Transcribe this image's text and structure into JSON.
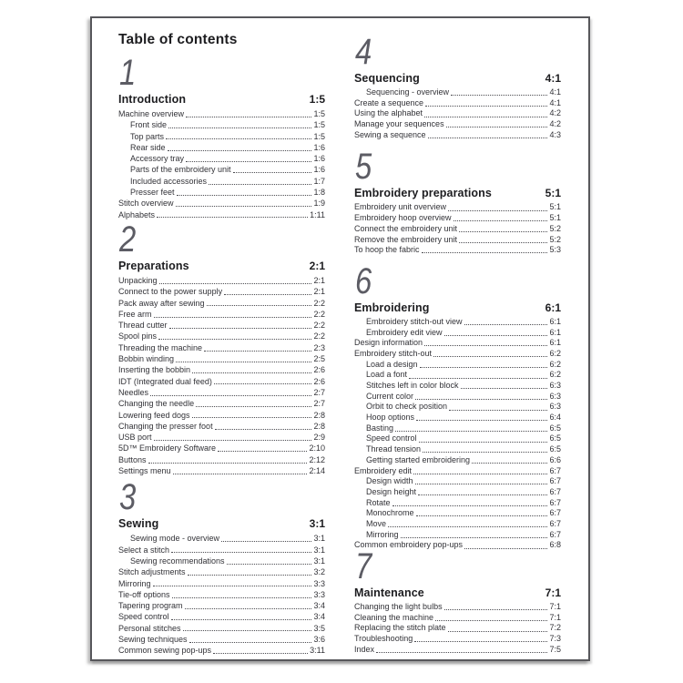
{
  "page": {
    "title": "Table of contents",
    "colors": {
      "text": "#323237",
      "heading": "#1d1d20",
      "numeral": "#5c5c64",
      "border": "#57575b"
    },
    "columns": [
      {
        "sections": [
          {
            "number": "1",
            "heading": "Introduction",
            "page": "1:5",
            "entries": [
              {
                "label": "Machine overview",
                "page": "1:5",
                "indent": 0
              },
              {
                "label": "Front side",
                "page": "1:5",
                "indent": 1
              },
              {
                "label": "Top parts",
                "page": "1:5",
                "indent": 1
              },
              {
                "label": "Rear side",
                "page": "1:6",
                "indent": 1
              },
              {
                "label": "Accessory tray",
                "page": "1:6",
                "indent": 1
              },
              {
                "label": "Parts of the embroidery unit",
                "page": "1:6",
                "indent": 1
              },
              {
                "label": "Included accessories",
                "page": "1:7",
                "indent": 1
              },
              {
                "label": "Presser feet",
                "page": "1:8",
                "indent": 1
              },
              {
                "label": "Stitch overview",
                "page": "1:9",
                "indent": 0
              },
              {
                "label": "Alphabets",
                "page": "1:11",
                "indent": 0
              }
            ]
          },
          {
            "number": "2",
            "heading": "Preparations",
            "page": "2:1",
            "entries": [
              {
                "label": "Unpacking",
                "page": "2:1",
                "indent": 0
              },
              {
                "label": "Connect to the power supply",
                "page": "2:1",
                "indent": 0
              },
              {
                "label": "Pack away after sewing",
                "page": "2:2",
                "indent": 0
              },
              {
                "label": "Free arm",
                "page": "2:2",
                "indent": 0
              },
              {
                "label": "Thread cutter",
                "page": "2:2",
                "indent": 0
              },
              {
                "label": "Spool pins",
                "page": "2:2",
                "indent": 0
              },
              {
                "label": "Threading the machine",
                "page": "2:3",
                "indent": 0
              },
              {
                "label": "Bobbin winding",
                "page": "2:5",
                "indent": 0
              },
              {
                "label": "Inserting the bobbin",
                "page": "2:6",
                "indent": 0
              },
              {
                "label": "IDT (Integrated dual feed)",
                "page": "2:6",
                "indent": 0
              },
              {
                "label": "Needles",
                "page": "2:7",
                "indent": 0
              },
              {
                "label": "Changing the needle",
                "page": "2:7",
                "indent": 0
              },
              {
                "label": "Lowering feed dogs",
                "page": "2:8",
                "indent": 0
              },
              {
                "label": "Changing the presser foot",
                "page": "2:8",
                "indent": 0
              },
              {
                "label": "USB port",
                "page": "2:9",
                "indent": 0
              },
              {
                "label": "5D™ Embroidery Software",
                "page": "2:10",
                "indent": 0
              },
              {
                "label": "Buttons",
                "page": "2:12",
                "indent": 0
              },
              {
                "label": "Settings menu",
                "page": "2:14",
                "indent": 0
              }
            ]
          },
          {
            "number": "3",
            "heading": "Sewing",
            "page": "3:1",
            "entries": [
              {
                "label": "Sewing mode - overview",
                "page": "3:1",
                "indent": 1
              },
              {
                "label": "Select a stitch",
                "page": "3:1",
                "indent": 0
              },
              {
                "label": "Sewing recommendations",
                "page": "3:1",
                "indent": 1
              },
              {
                "label": "Stitch adjustments",
                "page": "3:2",
                "indent": 0
              },
              {
                "label": "Mirroring",
                "page": "3:3",
                "indent": 0
              },
              {
                "label": "Tie-off options",
                "page": "3:3",
                "indent": 0
              },
              {
                "label": "Tapering program",
                "page": "3:4",
                "indent": 0
              },
              {
                "label": "Speed control",
                "page": "3:4",
                "indent": 0
              },
              {
                "label": "Personal stitches",
                "page": "3:5",
                "indent": 0
              },
              {
                "label": "Sewing techniques",
                "page": "3:6",
                "indent": 0
              },
              {
                "label": "Common sewing pop-ups",
                "page": "3:11",
                "indent": 0
              }
            ]
          }
        ]
      },
      {
        "sections": [
          {
            "number": "4",
            "heading": "Sequencing",
            "page": "4:1",
            "entries": [
              {
                "label": "Sequencing - overview",
                "page": "4:1",
                "indent": 1
              },
              {
                "label": "Create a sequence",
                "page": "4:1",
                "indent": 0
              },
              {
                "label": "Using the alphabet",
                "page": "4:2",
                "indent": 0
              },
              {
                "label": "Manage your sequences",
                "page": "4:2",
                "indent": 0
              },
              {
                "label": "Sewing a sequence",
                "page": "4:3",
                "indent": 0
              }
            ]
          },
          {
            "number": "5",
            "heading": "Embroidery preparations",
            "page": "5:1",
            "entries": [
              {
                "label": "Embroidery unit overview",
                "page": "5:1",
                "indent": 0
              },
              {
                "label": "Embroidery hoop overview",
                "page": "5:1",
                "indent": 0
              },
              {
                "label": "Connect the embroidery unit",
                "page": "5:2",
                "indent": 0
              },
              {
                "label": "Remove the embroidery unit",
                "page": "5:2",
                "indent": 0
              },
              {
                "label": "To hoop the fabric",
                "page": "5:3",
                "indent": 0
              }
            ]
          },
          {
            "number": "6",
            "heading": "Embroidering",
            "page": "6:1",
            "entries": [
              {
                "label": "Embroidery stitch-out view",
                "page": "6:1",
                "indent": 1
              },
              {
                "label": "Embroidery edit view",
                "page": "6:1",
                "indent": 1
              },
              {
                "label": "Design information",
                "page": "6:1",
                "indent": 0
              },
              {
                "label": "Embroidery stitch-out",
                "page": "6:2",
                "indent": 0
              },
              {
                "label": "Load a design",
                "page": "6:2",
                "indent": 1
              },
              {
                "label": "Load a font",
                "page": "6:2",
                "indent": 1
              },
              {
                "label": "Stitches left in color block",
                "page": "6:3",
                "indent": 1
              },
              {
                "label": "Current color",
                "page": "6:3",
                "indent": 1
              },
              {
                "label": "Orbit to check position",
                "page": "6:3",
                "indent": 1
              },
              {
                "label": "Hoop options",
                "page": "6:4",
                "indent": 1
              },
              {
                "label": "Basting",
                "page": "6:5",
                "indent": 1
              },
              {
                "label": "Speed control",
                "page": "6:5",
                "indent": 1
              },
              {
                "label": "Thread tension",
                "page": "6:5",
                "indent": 1
              },
              {
                "label": "Getting started embroidering",
                "page": "6:6",
                "indent": 1
              },
              {
                "label": "Embroidery edit",
                "page": "6:7",
                "indent": 0
              },
              {
                "label": "Design width",
                "page": "6:7",
                "indent": 1
              },
              {
                "label": "Design height",
                "page": "6:7",
                "indent": 1
              },
              {
                "label": "Rotate",
                "page": "6:7",
                "indent": 1
              },
              {
                "label": "Monochrome",
                "page": "6:7",
                "indent": 1
              },
              {
                "label": "Move",
                "page": "6:7",
                "indent": 1
              },
              {
                "label": "Mirroring",
                "page": "6:7",
                "indent": 1
              },
              {
                "label": "Common embroidery pop-ups",
                "page": "6:8",
                "indent": 0
              }
            ]
          },
          {
            "number": "7",
            "heading": "Maintenance",
            "page": "7:1",
            "entries": [
              {
                "label": "Changing the light bulbs",
                "page": "7:1",
                "indent": 0
              },
              {
                "label": "Cleaning the machine",
                "page": "7:1",
                "indent": 0
              },
              {
                "label": "Replacing the stitch plate",
                "page": "7:2",
                "indent": 0
              },
              {
                "label": "Troubleshooting",
                "page": "7:3",
                "indent": 0
              },
              {
                "label": "Index",
                "page": "7:5",
                "indent": 0
              }
            ]
          }
        ]
      }
    ]
  }
}
